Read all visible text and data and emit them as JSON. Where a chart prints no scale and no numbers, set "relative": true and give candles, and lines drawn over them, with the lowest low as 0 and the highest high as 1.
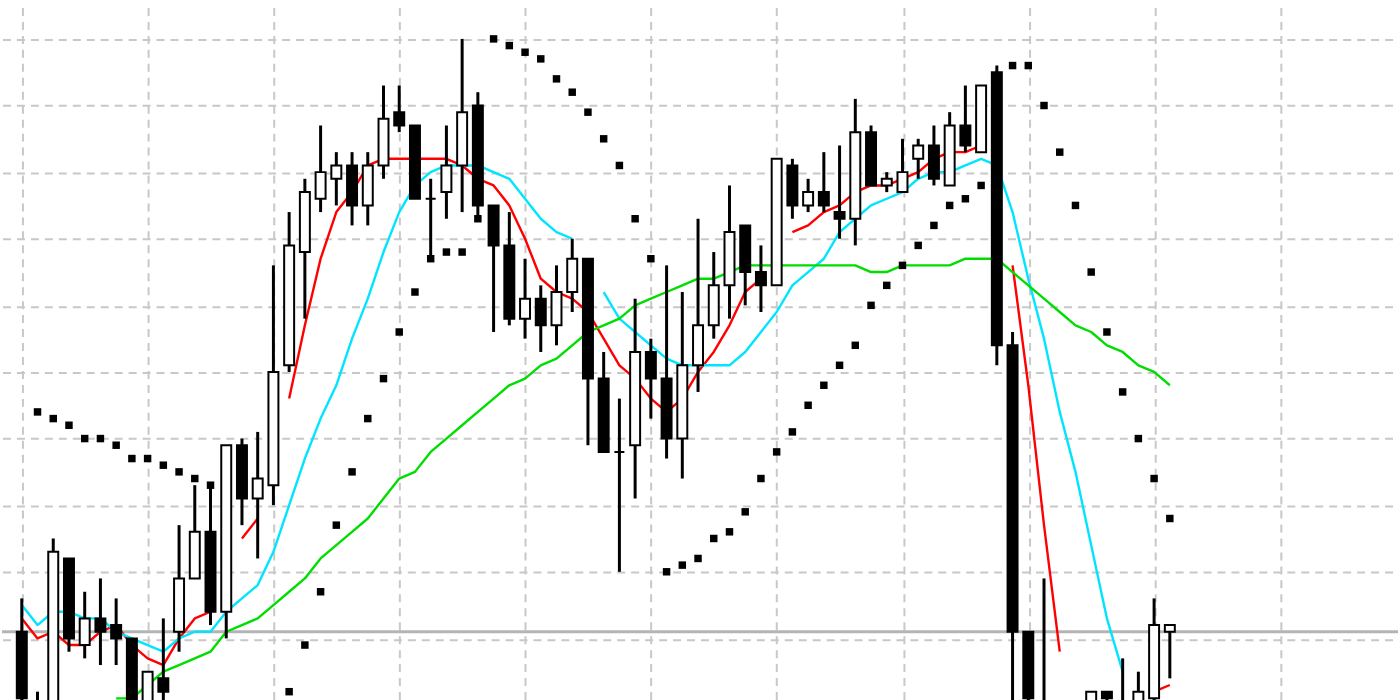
{
  "chart_data": {
    "type": "candlestick",
    "relative": true,
    "grid": true,
    "tick_labels": false,
    "categories": [
      null,
      null,
      null,
      null,
      null,
      null,
      null,
      null,
      null,
      null,
      null,
      null,
      null,
      null,
      null,
      null,
      null,
      null,
      null,
      null,
      null,
      null,
      null,
      null,
      null,
      null,
      null,
      null,
      null,
      null,
      null,
      null,
      null,
      null,
      null,
      null,
      null,
      null,
      null,
      null,
      null,
      null,
      null,
      null,
      null,
      null,
      null,
      null,
      null,
      null,
      null,
      null,
      null,
      null,
      null,
      null,
      null,
      null,
      null,
      null,
      null,
      null,
      null,
      null,
      null,
      null,
      null,
      null,
      null,
      null,
      null,
      null,
      null,
      null
    ],
    "ohlc": [
      [
        0.11,
        0.16,
        0,
        0.01
      ],
      [
        0,
        0.02,
        0,
        0
      ],
      [
        0,
        0.25,
        0,
        0.23
      ],
      [
        0.22,
        0.22,
        0.08,
        0.1
      ],
      [
        0.09,
        0.17,
        0.07,
        0.13
      ],
      [
        0.13,
        0.19,
        0.06,
        0.11
      ],
      [
        0.12,
        0.16,
        0.06,
        0.1
      ],
      [
        0.1,
        0.1,
        0,
        0
      ],
      [
        0,
        0.05,
        0,
        0.05
      ],
      [
        0.04,
        0.13,
        0,
        0.02
      ],
      [
        0.11,
        0.27,
        0.08,
        0.19
      ],
      [
        0.19,
        0.33,
        0.19,
        0.26
      ],
      [
        0.26,
        0.33,
        0.12,
        0.14
      ],
      [
        0.14,
        0.39,
        0.1,
        0.39
      ],
      [
        0.39,
        0.4,
        0.27,
        0.31
      ],
      [
        0.31,
        0.41,
        0.22,
        0.34
      ],
      [
        0.33,
        0.66,
        0.3,
        0.5
      ],
      [
        0.51,
        0.74,
        0.5,
        0.69
      ],
      [
        0.68,
        0.79,
        0.58,
        0.77
      ],
      [
        0.76,
        0.87,
        0.74,
        0.8
      ],
      [
        0.79,
        0.83,
        0.75,
        0.81
      ],
      [
        0.81,
        0.83,
        0.72,
        0.75
      ],
      [
        0.75,
        0.83,
        0.72,
        0.81
      ],
      [
        0.81,
        0.93,
        0.79,
        0.88
      ],
      [
        0.89,
        0.93,
        0.86,
        0.87
      ],
      [
        0.87,
        0.87,
        0.76,
        0.76
      ],
      [
        0.76,
        0.79,
        0.67,
        0.76
      ],
      [
        0.77,
        0.87,
        0.73,
        0.81
      ],
      [
        0.81,
        1.0,
        0.74,
        0.89
      ],
      [
        0.9,
        0.92,
        0.73,
        0.75
      ],
      [
        0.75,
        0.75,
        0.56,
        0.69
      ],
      [
        0.69,
        0.74,
        0.57,
        0.58
      ],
      [
        0.58,
        0.67,
        0.55,
        0.61
      ],
      [
        0.61,
        0.63,
        0.53,
        0.57
      ],
      [
        0.57,
        0.66,
        0.54,
        0.62
      ],
      [
        0.62,
        0.7,
        0.59,
        0.67
      ],
      [
        0.67,
        0.67,
        0.39,
        0.49
      ],
      [
        0.49,
        0.53,
        0.38,
        0.38
      ],
      [
        0.38,
        0.46,
        0.2,
        0.38
      ],
      [
        0.39,
        0.61,
        0.31,
        0.53
      ],
      [
        0.53,
        0.55,
        0.43,
        0.49
      ],
      [
        0.49,
        0.66,
        0.37,
        0.4
      ],
      [
        0.4,
        0.62,
        0.34,
        0.51
      ],
      [
        0.51,
        0.73,
        0.47,
        0.57
      ],
      [
        0.57,
        0.68,
        0.55,
        0.63
      ],
      [
        0.63,
        0.78,
        0.58,
        0.71
      ],
      [
        0.72,
        0.72,
        0.6,
        0.65
      ],
      [
        0.65,
        0.69,
        0.59,
        0.63
      ],
      [
        0.63,
        0.82,
        0.63,
        0.82
      ],
      [
        0.81,
        0.82,
        0.73,
        0.75
      ],
      [
        0.75,
        0.79,
        0.74,
        0.77
      ],
      [
        0.77,
        0.83,
        0.74,
        0.75
      ],
      [
        0.74,
        0.84,
        0.7,
        0.73
      ],
      [
        0.73,
        0.91,
        0.69,
        0.86
      ],
      [
        0.86,
        0.87,
        0.78,
        0.78
      ],
      [
        0.78,
        0.8,
        0.77,
        0.79
      ],
      [
        0.77,
        0.85,
        0.77,
        0.8
      ],
      [
        0.82,
        0.85,
        0.79,
        0.84
      ],
      [
        0.84,
        0.87,
        0.78,
        0.79
      ],
      [
        0.78,
        0.89,
        0.78,
        0.87
      ],
      [
        0.87,
        0.93,
        0.83,
        0.84
      ],
      [
        0.83,
        0.93,
        0.83,
        0.93
      ],
      [
        0.95,
        0.96,
        0.51,
        0.54
      ],
      [
        0.54,
        0.56,
        0,
        0.11
      ],
      [
        0.11,
        0.11,
        0,
        0.01
      ],
      [
        0,
        0.19,
        0,
        0
      ],
      null,
      null,
      [
        0,
        0.02,
        0,
        0.02
      ],
      [
        0.02,
        0.02,
        0,
        0.01
      ],
      [
        0,
        0.07,
        0,
        0
      ],
      [
        0,
        0.05,
        0,
        0.02
      ],
      [
        0.01,
        0.16,
        0,
        0.12
      ],
      [
        0.11,
        0.12,
        0.04,
        0.12
      ]
    ],
    "series": [
      {
        "type": "line",
        "color": "#ff0000",
        "values": [
          0.13,
          0.1,
          0.11,
          0.09,
          0.09,
          0.11,
          0.12,
          0.09,
          0.07,
          0.06,
          0.1,
          0.13,
          0.14,
          null,
          0.25,
          0.28,
          null,
          0.46,
          0.57,
          0.67,
          0.74,
          0.77,
          0.81,
          0.82,
          0.82,
          0.82,
          0.82,
          0.82,
          0.81,
          0.79,
          0.78,
          0.75,
          0.7,
          0.64,
          0.62,
          0.61,
          0.59,
          0.55,
          0.51,
          0.49,
          0.46,
          0.44,
          0.46,
          0.5,
          0.53,
          0.57,
          0.62,
          0.64,
          null,
          0.71,
          0.72,
          0.74,
          0.75,
          0.77,
          0.78,
          0.78,
          0.79,
          0.8,
          0.82,
          0.83,
          0.83,
          0.84,
          null,
          0.66,
          0.48,
          0.27,
          0.08,
          null,
          null,
          null,
          null,
          null,
          0.02,
          0.03
        ]
      },
      {
        "type": "line",
        "color": "#00e5ff",
        "values": [
          0.15,
          0.12,
          0.14,
          0.14,
          0.13,
          0.13,
          0.11,
          0.1,
          0.09,
          0.08,
          0.1,
          0.11,
          0.11,
          0.14,
          0.16,
          0.18,
          0.23,
          0.3,
          0.37,
          0.43,
          0.48,
          0.55,
          0.61,
          0.68,
          0.74,
          0.78,
          0.8,
          0.81,
          0.81,
          0.81,
          0.8,
          0.79,
          0.76,
          0.73,
          0.71,
          0.7,
          null,
          0.62,
          0.58,
          0.56,
          0.54,
          0.52,
          0.51,
          0.51,
          0.51,
          0.51,
          0.53,
          0.56,
          0.59,
          0.63,
          0.65,
          0.67,
          0.71,
          0.73,
          0.75,
          0.76,
          0.77,
          0.79,
          0.8,
          0.8,
          0.81,
          0.82,
          0.81,
          0.74,
          0.64,
          0.55,
          0.44,
          0.35,
          0.24,
          0.13,
          0.05,
          null,
          null,
          null
        ]
      },
      {
        "type": "line",
        "color": "#00dd00",
        "values": [
          null,
          null,
          null,
          null,
          null,
          null,
          0.01,
          0.01,
          0.03,
          0.05,
          0.06,
          0.07,
          0.08,
          0.11,
          0.12,
          0.13,
          0.15,
          0.17,
          0.19,
          0.22,
          0.24,
          0.26,
          0.28,
          0.31,
          0.34,
          0.35,
          0.38,
          0.4,
          0.42,
          0.44,
          0.46,
          0.48,
          0.49,
          0.51,
          0.52,
          0.54,
          0.56,
          0.57,
          0.58,
          0.6,
          0.61,
          0.62,
          0.63,
          0.64,
          0.64,
          0.65,
          0.66,
          0.66,
          0.66,
          0.66,
          0.66,
          0.66,
          0.66,
          0.66,
          0.65,
          0.65,
          0.66,
          0.66,
          0.66,
          0.66,
          0.67,
          0.67,
          0.67,
          0.65,
          0.63,
          0.61,
          0.59,
          0.57,
          0.56,
          0.54,
          0.53,
          0.51,
          0.5,
          0.48
        ]
      },
      {
        "type": "scatter",
        "color": "#000000",
        "marker": "square",
        "values": [
          null,
          0.44,
          0.43,
          0.42,
          0.4,
          0.4,
          0.39,
          0.37,
          0.37,
          0.36,
          0.35,
          0.34,
          0.33,
          null,
          null,
          null,
          null,
          0.02,
          0.09,
          0.17,
          0.27,
          0.35,
          0.43,
          0.49,
          0.56,
          0.62,
          0.67,
          0.68,
          0.68,
          0.73,
          1.0,
          0.99,
          0.98,
          0.97,
          0.94,
          0.92,
          0.89,
          0.85,
          0.81,
          0.73,
          0.67,
          0.2,
          0.21,
          0.22,
          0.25,
          0.26,
          0.29,
          0.34,
          0.38,
          0.41,
          0.45,
          0.48,
          0.51,
          0.54,
          0.6,
          0.63,
          0.66,
          0.69,
          0.72,
          0.75,
          0.76,
          0.78,
          null,
          0.96,
          0.96,
          0.9,
          0.83,
          0.75,
          0.65,
          0.56,
          0.47,
          0.4,
          0.34,
          0.28
        ]
      }
    ],
    "ref_lines": [
      {
        "axis": "y",
        "value": 0.11,
        "color": "#b4b4b4"
      }
    ]
  }
}
